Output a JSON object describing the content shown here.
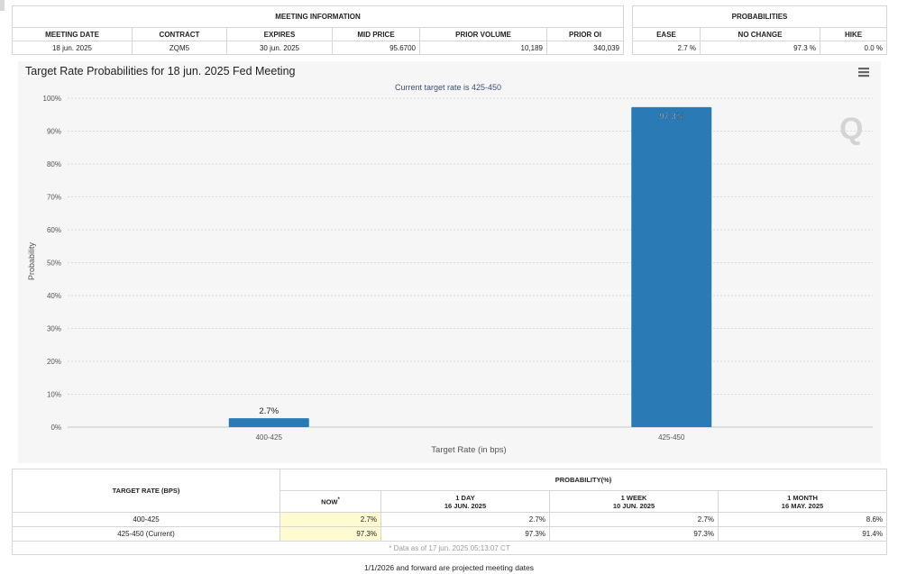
{
  "meeting_info": {
    "title": "MEETING INFORMATION",
    "columns": [
      "MEETING DATE",
      "CONTRACT",
      "EXPIRES",
      "MID PRICE",
      "PRIOR VOLUME",
      "PRIOR OI"
    ],
    "values": [
      "18 jun. 2025",
      "ZQM5",
      "30 jun. 2025",
      "95.6700",
      "10,189",
      "340,039"
    ]
  },
  "probabilities": {
    "title": "PROBABILITIES",
    "columns": [
      "EASE",
      "NO CHANGE",
      "HIKE"
    ],
    "values": [
      "2.7 %",
      "97.3 %",
      "0.0 %"
    ]
  },
  "chart": {
    "menu_icon": "hamburger-menu-icon",
    "watermark": "Q",
    "watermark_icon": "q-watermark-icon"
  },
  "chart_data": {
    "type": "bar",
    "title": "Target Rate Probabilities for 18 jun. 2025 Fed Meeting",
    "subtitle": "Current target rate is 425-450",
    "xlabel": "Target Rate (in bps)",
    "ylabel": "Probability",
    "categories": [
      "400-425",
      "425-450"
    ],
    "values": [
      2.7,
      97.3
    ],
    "data_labels": [
      "2.7%",
      "97.3%"
    ],
    "ylim": [
      0,
      100
    ],
    "yticks": [
      0,
      10,
      20,
      30,
      40,
      50,
      60,
      70,
      80,
      90,
      100
    ],
    "ytick_labels": [
      "0%",
      "10%",
      "20%",
      "30%",
      "40%",
      "50%",
      "60%",
      "70%",
      "80%",
      "90%",
      "100%"
    ],
    "grid": true,
    "bar_color": "#2a7ab5"
  },
  "prob_table": {
    "rate_header": "TARGET RATE (BPS)",
    "prob_header": "PROBABILITY(%)",
    "now": {
      "label": "NOW",
      "mark": "*"
    },
    "periods": [
      {
        "line1": "1 DAY",
        "line2": "16 JUN. 2025"
      },
      {
        "line1": "1 WEEK",
        "line2": "10 JUN. 2025"
      },
      {
        "line1": "1 MONTH",
        "line2": "16 MAY. 2025"
      }
    ],
    "rows": [
      {
        "rate": "400-425",
        "values": [
          "2.7%",
          "2.7%",
          "2.7%",
          "8.6%"
        ]
      },
      {
        "rate": "425-450 (Current)",
        "values": [
          "97.3%",
          "97.3%",
          "97.3%",
          "91.4%"
        ]
      }
    ],
    "note": "* Data as of 17 jun. 2025 05:13:07 CT"
  },
  "footer": {
    "projected": "1/1/2026 and forward are projected meeting dates"
  }
}
